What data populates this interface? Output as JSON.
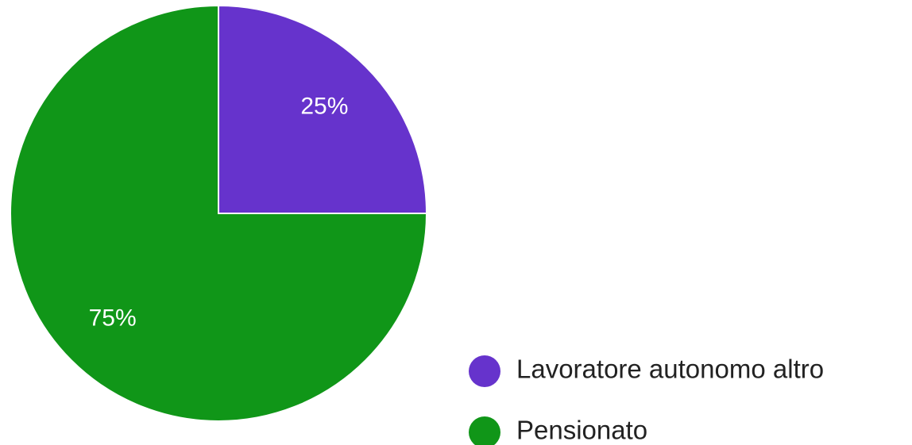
{
  "chart_data": {
    "type": "pie",
    "categories": [
      "Lavoratore autonomo altro",
      "Pensionato"
    ],
    "values": [
      25,
      75
    ],
    "value_labels": [
      "25%",
      "75%"
    ],
    "colors": [
      "#6633cc",
      "#109618"
    ]
  }
}
